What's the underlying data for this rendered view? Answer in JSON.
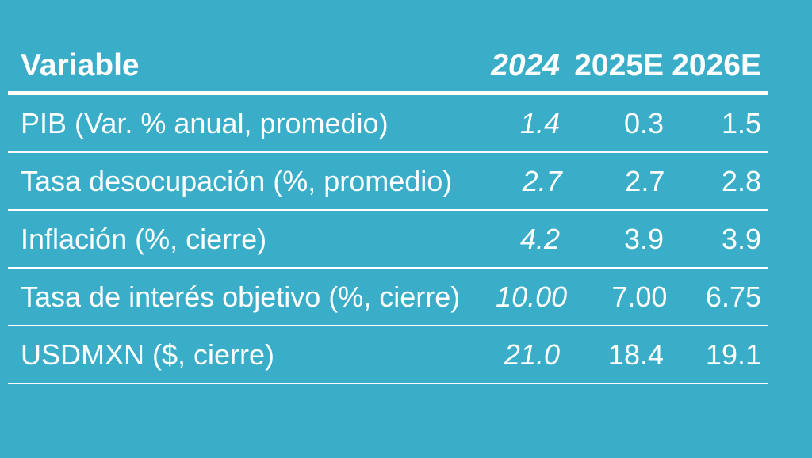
{
  "colors": {
    "background": "#3AAEC9",
    "text": "#FFFFFF",
    "divider": "#FFFFFF"
  },
  "table": {
    "columns": [
      {
        "label": "Variable"
      },
      {
        "label": "2024"
      },
      {
        "label": "2025E"
      },
      {
        "label": "2026E"
      }
    ],
    "rows": [
      {
        "variable": "PIB (Var. % anual, promedio)",
        "y2024": "1.4",
        "y2025e": "0.3",
        "y2026e": "1.5"
      },
      {
        "variable": "Tasa desocupación (%, promedio)",
        "y2024": "2.7",
        "y2025e": "2.7",
        "y2026e": "2.8"
      },
      {
        "variable": "Inflación (%, cierre)",
        "y2024": "4.2",
        "y2025e": "3.9",
        "y2026e": "3.9"
      },
      {
        "variable": "Tasa de interés objetivo (%, cierre)",
        "y2024": "10.00",
        "y2025e": "7.00",
        "y2026e": "6.75"
      },
      {
        "variable": "USDMXN ($, cierre)",
        "y2024": "21.0",
        "y2025e": "18.4",
        "y2026e": "19.1"
      }
    ]
  },
  "chart_data": {
    "type": "table",
    "title": "",
    "columns": [
      "Variable",
      "2024",
      "2025E",
      "2026E"
    ],
    "rows": [
      [
        "PIB (Var. % anual, promedio)",
        1.4,
        0.3,
        1.5
      ],
      [
        "Tasa desocupación (%, promedio)",
        2.7,
        2.7,
        2.8
      ],
      [
        "Inflación (%, cierre)",
        4.2,
        3.9,
        3.9
      ],
      [
        "Tasa de interés objetivo (%, cierre)",
        10.0,
        7.0,
        6.75
      ],
      [
        "USDMXN ($, cierre)",
        21.0,
        18.4,
        19.1
      ]
    ],
    "layout_hints": {
      "style": "white text on teal background, horizontal white rules only",
      "column_2024_italic": true,
      "header_bold": true
    }
  }
}
